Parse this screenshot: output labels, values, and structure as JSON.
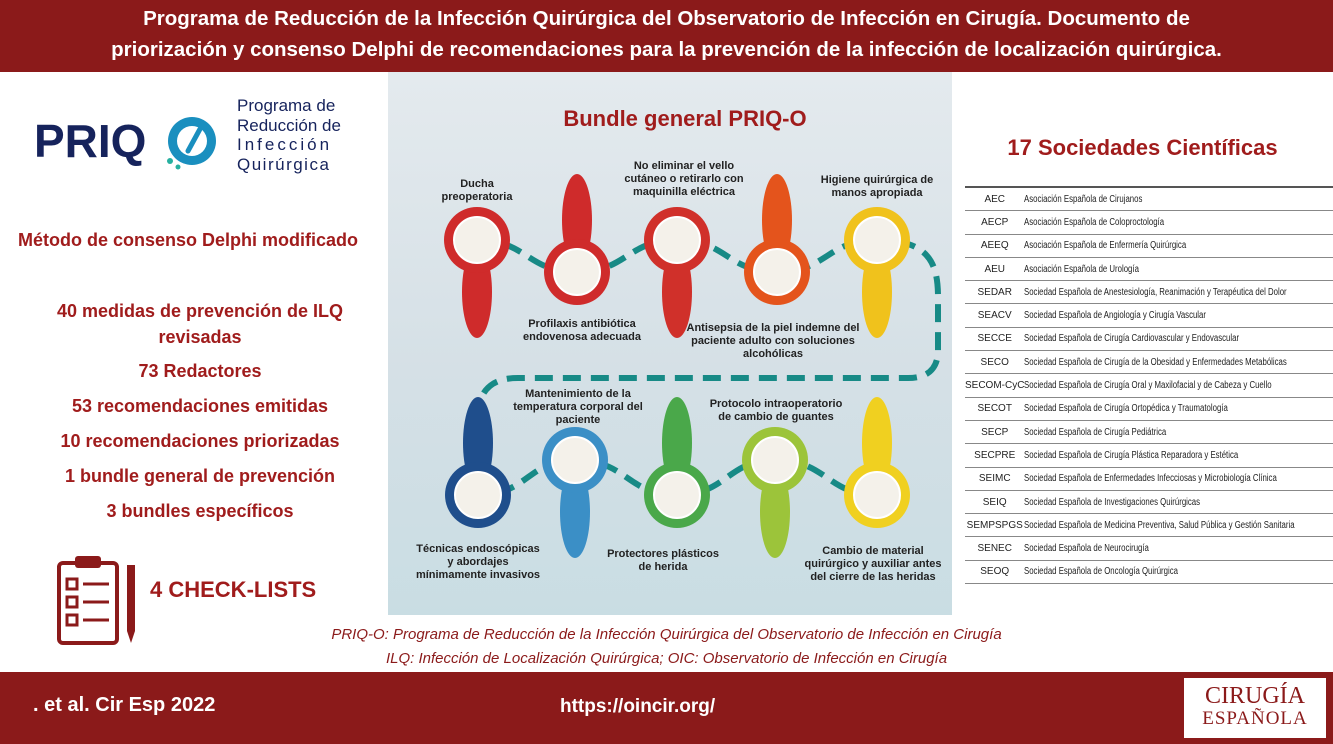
{
  "header": {
    "title_lines": [
      "Programa de Reducción de la Infección Quirúrgica del Observatorio de Infección en Cirugía. Documento de",
      "priorización y consenso Delphi de recomendaciones para la prevención de la infección de localización quirúrgica."
    ]
  },
  "logo": {
    "acronym": "PRIQ",
    "name_lines": [
      "Programa de",
      "Reducción de",
      "Infección",
      "Quirúrgica"
    ]
  },
  "method": "Método de consenso Delphi modificado",
  "stats": [
    "40 medidas de prevención de ILQ revisadas",
    "73 Redactores",
    "53 recomendaciones emitidas",
    "10 recomendaciones priorizadas",
    "1 bundle general de prevención",
    "3 bundles específicos"
  ],
  "checklists": "4 CHECK-LISTS",
  "bundle": {
    "title": "Bundle general PRIQ-O",
    "steps": [
      "Ducha preoperatoria",
      "Profilaxis antibiótica endovenosa adecuada",
      "No eliminar el vello cutáneo o retirarlo con maquinilla eléctrica",
      "Antisepsia de la piel indemne del paciente adulto con soluciones alcohólicas",
      "Higiene quirúrgica de manos apropiada",
      "Técnicas endoscópicas y abordajes mínimamente invasivos",
      "Mantenimiento de la temperatura corporal del paciente",
      "Protectores plásticos de herida",
      "Protocolo intraoperatorio de cambio de guantes",
      "Cambio de material quirúrgico y auxiliar antes del cierre de las heridas"
    ]
  },
  "societies": {
    "title": "17 Sociedades Científicas",
    "rows": [
      [
        "AEC",
        "Asociación Española de Cirujanos"
      ],
      [
        "AECP",
        "Asociación Española de Coloproctología"
      ],
      [
        "AEEQ",
        "Asociación Española de Enfermería Quirúrgica"
      ],
      [
        "AEU",
        "Asociación Española de Urología"
      ],
      [
        "SEDAR",
        "Sociedad Española de Anestesiología, Reanimación y Terapéutica del Dolor"
      ],
      [
        "SEACV",
        "Sociedad Española de Angiología y Cirugía Vascular"
      ],
      [
        "SECCE",
        "Sociedad Española de Cirugía Cardiovascular y Endovascular"
      ],
      [
        "SECO",
        "Sociedad Española de Cirugía de la Obesidad y Enfermedades Metabólicas"
      ],
      [
        "SECOM-CyC",
        "Sociedad Española de Cirugía Oral y Maxilofacial y de Cabeza y Cuello"
      ],
      [
        "SECOT",
        "Sociedad Española de Cirugía Ortopédica y Traumatología"
      ],
      [
        "SECP",
        "Sociedad Española de Cirugía Pediátrica"
      ],
      [
        "SECPRE",
        "Sociedad Española de Cirugía Plástica Reparadora y Estética"
      ],
      [
        "SEIMC",
        "Sociedad Española de Enfermedades Infecciosas y Microbiología Clínica"
      ],
      [
        "SEIQ",
        "Sociedad Española de Investigaciones Quirúrgicas"
      ],
      [
        "SEMPSPGS",
        "Sociedad Española de Medicina Preventiva, Salud Pública y Gestión Sanitaria"
      ],
      [
        "SENEC",
        "Sociedad Española de Neurocirugía"
      ],
      [
        "SEOQ",
        "Sociedad Española de Oncología Quirúrgica"
      ]
    ]
  },
  "footnotes": [
    "PRIQ-O: Programa de Reducción de la Infección Quirúrgica del Observatorio de Infección en Cirugía",
    "ILQ: Infección de Localización Quirúrgica; OIC: Observatorio de Infección en Cirugía"
  ],
  "footer": {
    "citation": ". et al. Cir Esp 2022",
    "url": "https://oincir.org/",
    "journal_lines": [
      "CIRUGÍA",
      "ESPAÑOLA"
    ]
  }
}
